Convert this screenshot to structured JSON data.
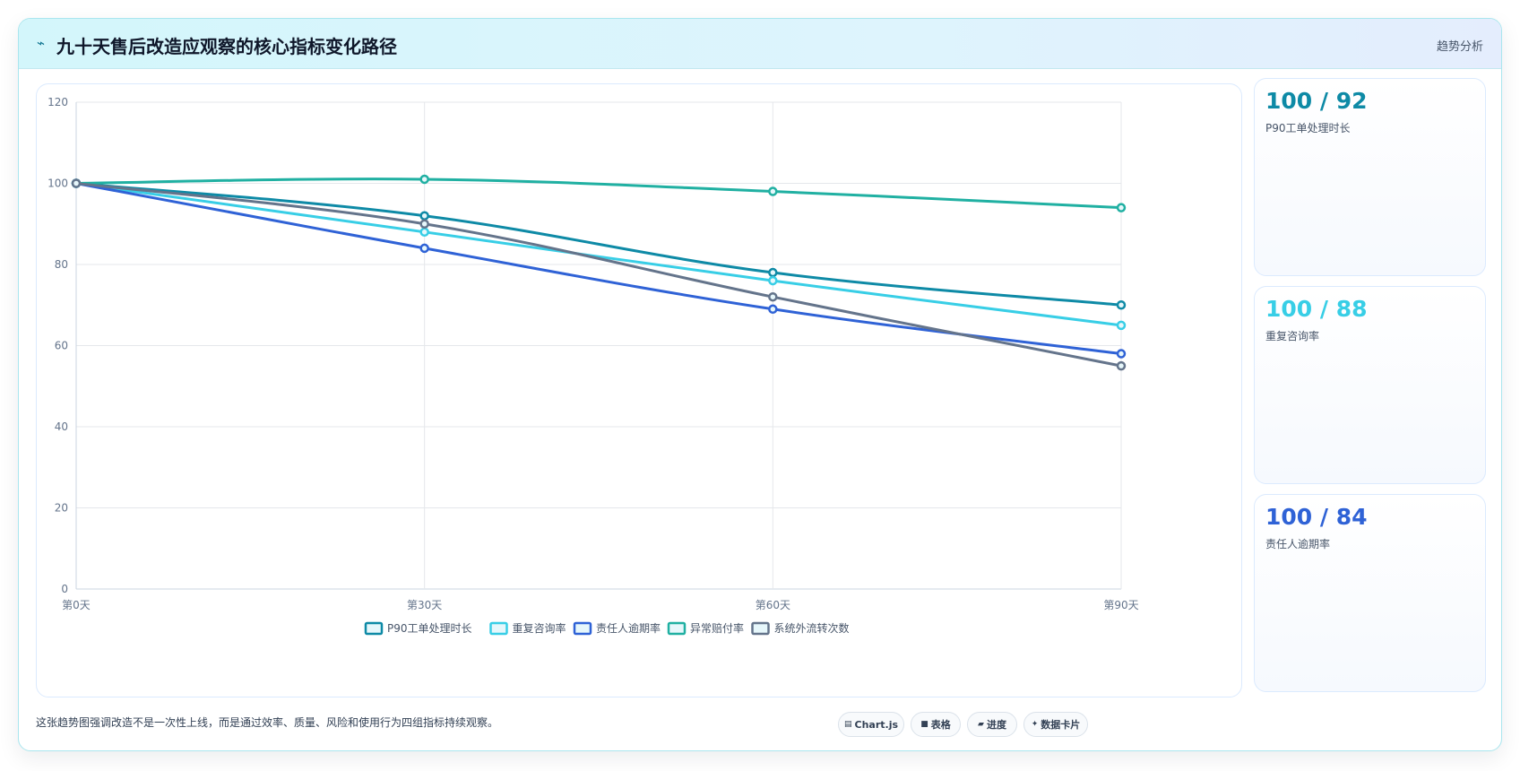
{
  "header": {
    "icon": "chart-trend-icon",
    "title": "九十天售后改造应观察的核心指标变化路径",
    "tag": "趋势分析"
  },
  "chart_data": {
    "type": "line",
    "categories": [
      "第0天",
      "第30天",
      "第60天",
      "第90天"
    ],
    "ylim": [
      0,
      120
    ],
    "yticks": [
      0,
      20,
      40,
      60,
      80,
      100,
      120
    ],
    "grid": true,
    "legend_position": "bottom",
    "series": [
      {
        "name": "P90工单处理时长",
        "values": [
          100,
          92,
          78,
          70
        ],
        "color": "#0e8aa6"
      },
      {
        "name": "重复咨询率",
        "values": [
          100,
          88,
          76,
          65
        ],
        "color": "#38cee6"
      },
      {
        "name": "责任人逾期率",
        "values": [
          100,
          84,
          69,
          58
        ],
        "color": "#2f62d6"
      },
      {
        "name": "异常赔付率",
        "values": [
          100,
          101,
          98,
          94
        ],
        "color": "#20b0a2"
      },
      {
        "name": "系统外流转次数",
        "values": [
          100,
          90,
          72,
          55
        ],
        "color": "#64748b"
      }
    ]
  },
  "side_cards": [
    {
      "value": "100 / 92",
      "label": "P90工单处理时长",
      "color": "#0e8aa6"
    },
    {
      "value": "100 / 88",
      "label": "重复咨询率",
      "color": "#38cee6"
    },
    {
      "value": "100 / 84",
      "label": "责任人逾期率",
      "color": "#2f62d6"
    }
  ],
  "footer": {
    "text": "这张趋势图强调改造不是一次性上线，而是通过效率、质量、风险和使用行为四组指标持续观察。",
    "pills": [
      {
        "icon": "chart-icon",
        "label": "Chart.js"
      },
      {
        "icon": "table-icon",
        "label": "表格"
      },
      {
        "icon": "progress-icon",
        "label": "进度"
      },
      {
        "icon": "sparkle-icon",
        "label": "数据卡片"
      }
    ]
  }
}
